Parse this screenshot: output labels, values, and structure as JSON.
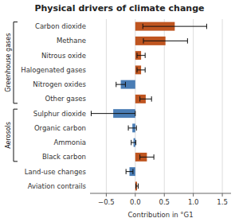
{
  "chart_data": {
    "type": "bar",
    "orientation": "horizontal",
    "title": "Physical drivers of climate change",
    "xlabel": "Contribution in °G1",
    "categories": [
      "Carbon dioxide",
      "Methane",
      "Nitrous oxide",
      "Halogenated gases",
      "Nitrogen oxides",
      "Other gases",
      "Sulphur dioxide",
      "Organic carbon",
      "Ammonia",
      "Black carbon",
      "Land-use changes",
      "Aviation contrails"
    ],
    "values": [
      0.68,
      0.52,
      0.1,
      0.1,
      -0.25,
      0.18,
      -0.38,
      -0.05,
      -0.03,
      0.2,
      -0.1,
      0.03
    ],
    "errors": [
      0.55,
      0.38,
      0.07,
      0.07,
      0.08,
      0.1,
      0.38,
      0.07,
      0.04,
      0.12,
      0.06,
      0.02
    ],
    "colors": [
      "#bf5520",
      "#bf5520",
      "#bf5520",
      "#bf5520",
      "#4a7db5",
      "#bf5520",
      "#4a7db5",
      "#4a7db5",
      "#4a7db5",
      "#bf5520",
      "#4a7db5",
      "#bf5520"
    ],
    "xlim": [
      -0.78,
      1.65
    ],
    "xticks": [
      {
        "value": -0.5,
        "label": "−0.5"
      },
      {
        "value": 0,
        "label": "0.0"
      },
      0.5,
      {
        "value": 1.0,
        "label": "1.0"
      },
      1.5
    ],
    "grid": true,
    "annotations": [
      {
        "text": "Greenhouse gases",
        "first": "Carbon dioxide",
        "last": "Other gases"
      },
      {
        "text": "Aerosols",
        "first": "Sulphur dioxide",
        "last": "Black carbon"
      }
    ]
  }
}
